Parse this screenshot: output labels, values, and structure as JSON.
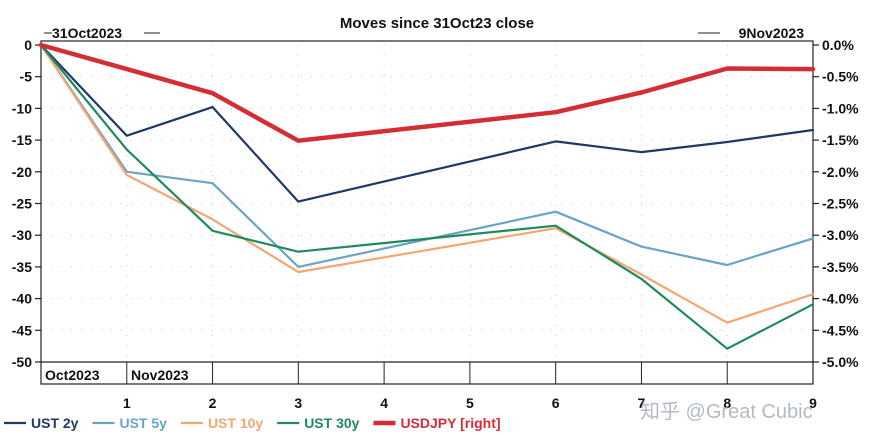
{
  "chart_data": {
    "type": "line",
    "title": "Moves since 31Oct23 close",
    "annotations": {
      "start_label": "31Oct2023",
      "end_label": "9Nov2023",
      "month_label_1": "Oct2023",
      "month_label_2": "Nov2023"
    },
    "x_ticks": [
      "1",
      "2",
      "3",
      "4",
      "5",
      "6",
      "7",
      "8",
      "9"
    ],
    "x": [
      0,
      1,
      2,
      3,
      6,
      7,
      8,
      9
    ],
    "ylim_left": [
      -50,
      0
    ],
    "yticks_left": [
      "0",
      "-5",
      "-10",
      "-15",
      "-20",
      "-25",
      "-30",
      "-35",
      "-40",
      "-45",
      "-50"
    ],
    "ylim_right": [
      -5.0,
      0.0
    ],
    "yticks_right": [
      "0.0%",
      "-0.5%",
      "-1.0%",
      "-1.5%",
      "-2.0%",
      "-2.5%",
      "-3.0%",
      "-3.5%",
      "-4.0%",
      "-4.5%",
      "-5.0%"
    ],
    "grid": true,
    "legend_position": "bottom",
    "series": [
      {
        "name": "UST 2y",
        "color": "#1f3864",
        "axis": "left",
        "values": [
          0,
          -14.3,
          -9.8,
          -24.7,
          -15.2,
          -16.9,
          -15.3,
          -13.4
        ]
      },
      {
        "name": "UST 5y",
        "color": "#6aa3c6",
        "axis": "left",
        "values": [
          0,
          -20.0,
          -21.8,
          -35.0,
          -26.3,
          -31.8,
          -34.7,
          -30.5
        ]
      },
      {
        "name": "UST 10y",
        "color": "#f4a672",
        "axis": "left",
        "values": [
          0,
          -20.5,
          -27.5,
          -35.8,
          -28.9,
          -36.2,
          -43.8,
          -39.3
        ]
      },
      {
        "name": "UST 30y",
        "color": "#1e8a5e",
        "axis": "left",
        "values": [
          0,
          -16.5,
          -29.3,
          -32.6,
          -28.5,
          -36.9,
          -47.9,
          -40.9
        ]
      },
      {
        "name": "USDJPY [right]",
        "color": "#d42e34",
        "axis": "right",
        "values": [
          0,
          -0.38,
          -0.76,
          -1.51,
          -1.06,
          -0.75,
          -0.37,
          -0.38
        ]
      }
    ]
  },
  "watermark": "知乎 @Great Cubic"
}
